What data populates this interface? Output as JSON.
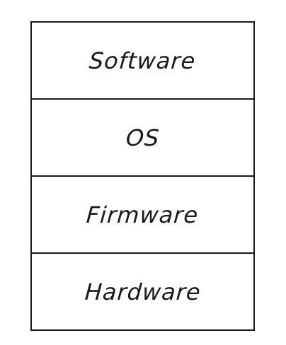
{
  "diagram": {
    "layers": [
      {
        "label": "Software"
      },
      {
        "label": "OS"
      },
      {
        "label": "Firmware"
      },
      {
        "label": "Hardware"
      }
    ],
    "colors": {
      "stroke": "#1a1a1a",
      "background": "#ffffff"
    }
  }
}
